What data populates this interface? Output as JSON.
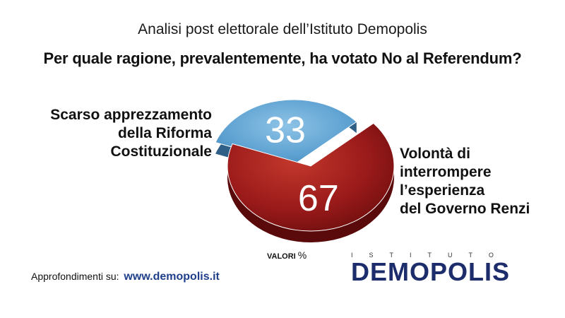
{
  "header": {
    "subtitle": "Analisi post elettorale dell’Istituto Demopolis",
    "question": "Per quale ragione, prevalentemente, ha votato No al Referendum?"
  },
  "chart_data": {
    "type": "pie",
    "title": "Per quale ragione, prevalentemente, ha votato No al Referendum?",
    "unit_label": "VALORI",
    "unit_symbol": "%",
    "slices": [
      {
        "label_lines": [
          "Scarso apprezzamento",
          "della Riforma",
          "Costituzionale"
        ],
        "value": 33,
        "display": "33",
        "color": "#5a9fd0"
      },
      {
        "label_lines": [
          "Volontà di",
          "interrompere",
          "l’esperienza",
          "del Governo Renzi"
        ],
        "value": 67,
        "display": "67",
        "color": "#9a1a1a"
      }
    ]
  },
  "footer": {
    "prefix": "Approfondimenti su:",
    "url": "www.demopolis.it"
  },
  "logo": {
    "top_text": "ISTITUTO",
    "main_text": "DEMOPOLIS"
  }
}
